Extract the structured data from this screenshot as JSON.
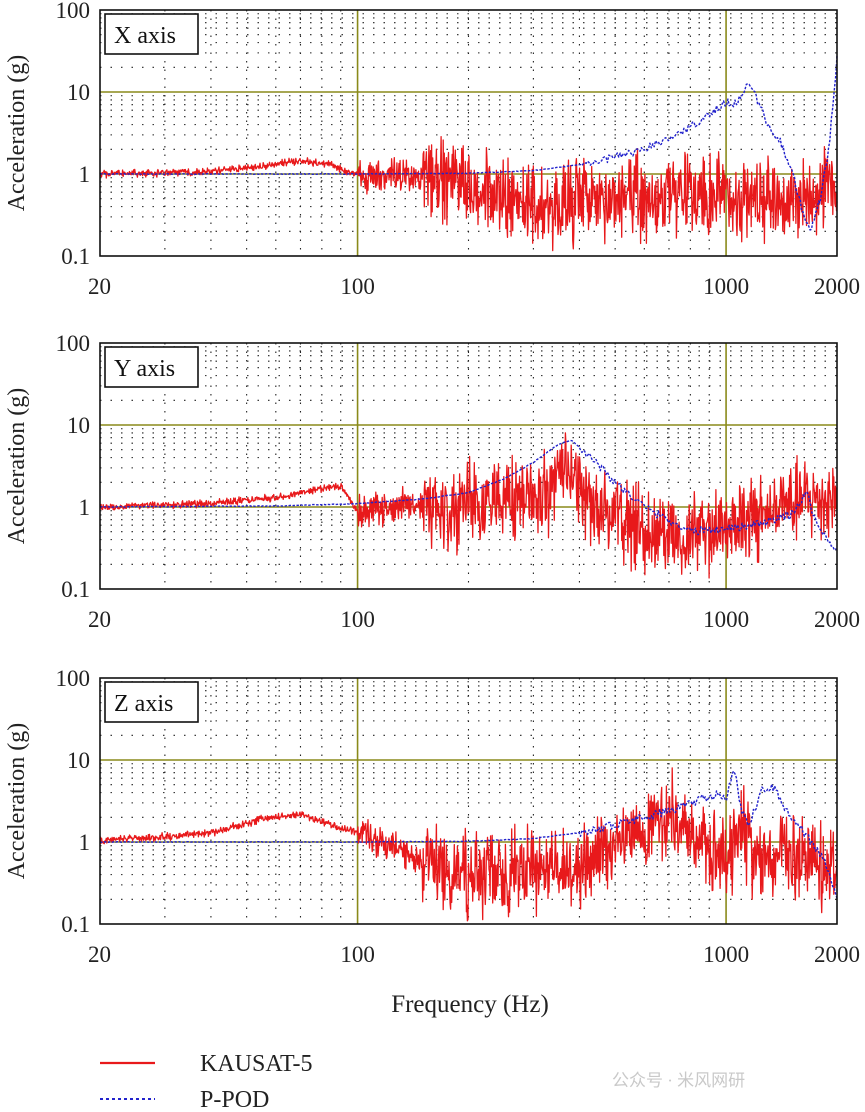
{
  "x_axis_label": "Frequency (Hz)",
  "colors": {
    "kausat": "#e8191b",
    "ppod": "#2222cc",
    "grid_major": "#8a8a1a",
    "grid_minor": "#222222"
  },
  "legend": {
    "items": [
      "KAUSAT-5",
      "P-POD"
    ]
  },
  "watermark": "公众号 · 米风网研",
  "chart_data": [
    {
      "type": "line",
      "title": "X axis",
      "xscale": "log",
      "yscale": "log",
      "xlim": [
        20,
        2000
      ],
      "ylim": [
        0.1,
        100
      ],
      "xticks": [
        20,
        100,
        1000,
        2000
      ],
      "xtick_labels": [
        "20",
        "100",
        "1000",
        "2000"
      ],
      "yticks": [
        0.1,
        1,
        10,
        100
      ],
      "ytick_labels": [
        "0.1",
        "1",
        "10",
        "100"
      ],
      "ylabel": "Acceleration (g)",
      "series": [
        {
          "name": "KAUSAT-5",
          "style": "solid",
          "noise": true,
          "x": [
            20,
            30,
            40,
            55,
            70,
            85,
            100,
            130,
            170,
            230,
            300,
            400,
            500,
            700,
            900,
            1100,
            1300,
            1500,
            1700,
            2000
          ],
          "y": [
            1.0,
            1.03,
            1.08,
            1.25,
            1.45,
            1.3,
            0.95,
            0.95,
            0.9,
            0.6,
            0.45,
            0.45,
            0.5,
            0.6,
            0.55,
            0.5,
            0.55,
            0.45,
            0.6,
            0.8
          ]
        },
        {
          "name": "P-POD",
          "style": "dotted",
          "noise": false,
          "x": [
            20,
            100,
            200,
            300,
            400,
            500,
            600,
            700,
            800,
            900,
            1000,
            1050,
            1100,
            1150,
            1200,
            1250,
            1300,
            1400,
            1500,
            1600,
            1700,
            1800,
            1900,
            2000
          ],
          "y": [
            1.0,
            1.0,
            1.02,
            1.1,
            1.3,
            1.6,
            2.0,
            2.7,
            3.8,
            5.5,
            7.5,
            7.0,
            8.5,
            14,
            9,
            6,
            4,
            2.5,
            1.2,
            0.4,
            0.2,
            0.5,
            2.0,
            25
          ]
        }
      ]
    },
    {
      "type": "line",
      "title": "Y axis",
      "xscale": "log",
      "yscale": "log",
      "xlim": [
        20,
        2000
      ],
      "ylim": [
        0.1,
        100
      ],
      "xticks": [
        20,
        100,
        1000,
        2000
      ],
      "xtick_labels": [
        "20",
        "100",
        "1000",
        "2000"
      ],
      "yticks": [
        0.1,
        1,
        10,
        100
      ],
      "ytick_labels": [
        "0.1",
        "1",
        "10",
        "100"
      ],
      "ylabel": "Acceleration (g)",
      "series": [
        {
          "name": "KAUSAT-5",
          "style": "solid",
          "noise": true,
          "x": [
            20,
            40,
            60,
            80,
            90,
            100,
            150,
            200,
            300,
            380,
            450,
            600,
            800,
            1000,
            1300,
            1600,
            2000
          ],
          "y": [
            1.0,
            1.1,
            1.3,
            1.7,
            1.8,
            0.9,
            1.1,
            1.0,
            1.3,
            2.5,
            0.9,
            0.5,
            0.45,
            0.6,
            0.8,
            1.2,
            1.3
          ]
        },
        {
          "name": "P-POD",
          "style": "dotted",
          "noise": false,
          "x": [
            20,
            60,
            100,
            150,
            200,
            250,
            300,
            350,
            380,
            420,
            500,
            600,
            800,
            1000,
            1200,
            1500,
            1650,
            1800,
            2000
          ],
          "y": [
            1.0,
            1.03,
            1.1,
            1.25,
            1.5,
            2.2,
            3.5,
            5.8,
            6.5,
            4.5,
            2.0,
            1.0,
            0.5,
            0.55,
            0.6,
            0.8,
            1.5,
            0.5,
            0.3
          ]
        }
      ]
    },
    {
      "type": "line",
      "title": "Z axis",
      "xscale": "log",
      "yscale": "log",
      "xlim": [
        20,
        2000
      ],
      "ylim": [
        0.1,
        100
      ],
      "xticks": [
        20,
        100,
        1000,
        2000
      ],
      "xtick_labels": [
        "20",
        "100",
        "1000",
        "2000"
      ],
      "yticks": [
        0.1,
        1,
        10,
        100
      ],
      "ytick_labels": [
        "0.1",
        "1",
        "10",
        "100"
      ],
      "ylabel": "Acceleration (g)",
      "series": [
        {
          "name": "KAUSAT-5",
          "style": "solid",
          "noise": true,
          "x": [
            20,
            30,
            40,
            55,
            70,
            85,
            100,
            120,
            150,
            200,
            300,
            400,
            500,
            600,
            700,
            850,
            1000,
            1100,
            1200,
            1400,
            1700,
            2000
          ],
          "y": [
            1.05,
            1.15,
            1.3,
            1.9,
            2.2,
            1.6,
            1.3,
            0.9,
            0.6,
            0.4,
            0.45,
            0.5,
            0.8,
            1.3,
            2.3,
            1.0,
            0.5,
            1.8,
            0.5,
            0.7,
            0.6,
            0.5
          ]
        },
        {
          "name": "P-POD",
          "style": "dotted",
          "noise": false,
          "x": [
            20,
            100,
            200,
            300,
            400,
            500,
            600,
            700,
            800,
            900,
            950,
            1000,
            1050,
            1100,
            1150,
            1250,
            1350,
            1450,
            1550,
            1700,
            1850,
            2000
          ],
          "y": [
            1.0,
            1.0,
            1.02,
            1.1,
            1.3,
            1.6,
            2.0,
            2.4,
            3.0,
            3.6,
            3.8,
            3.2,
            8.5,
            2.5,
            1.5,
            4.5,
            4.6,
            2.5,
            1.8,
            1.0,
            0.6,
            0.2
          ]
        }
      ]
    }
  ]
}
